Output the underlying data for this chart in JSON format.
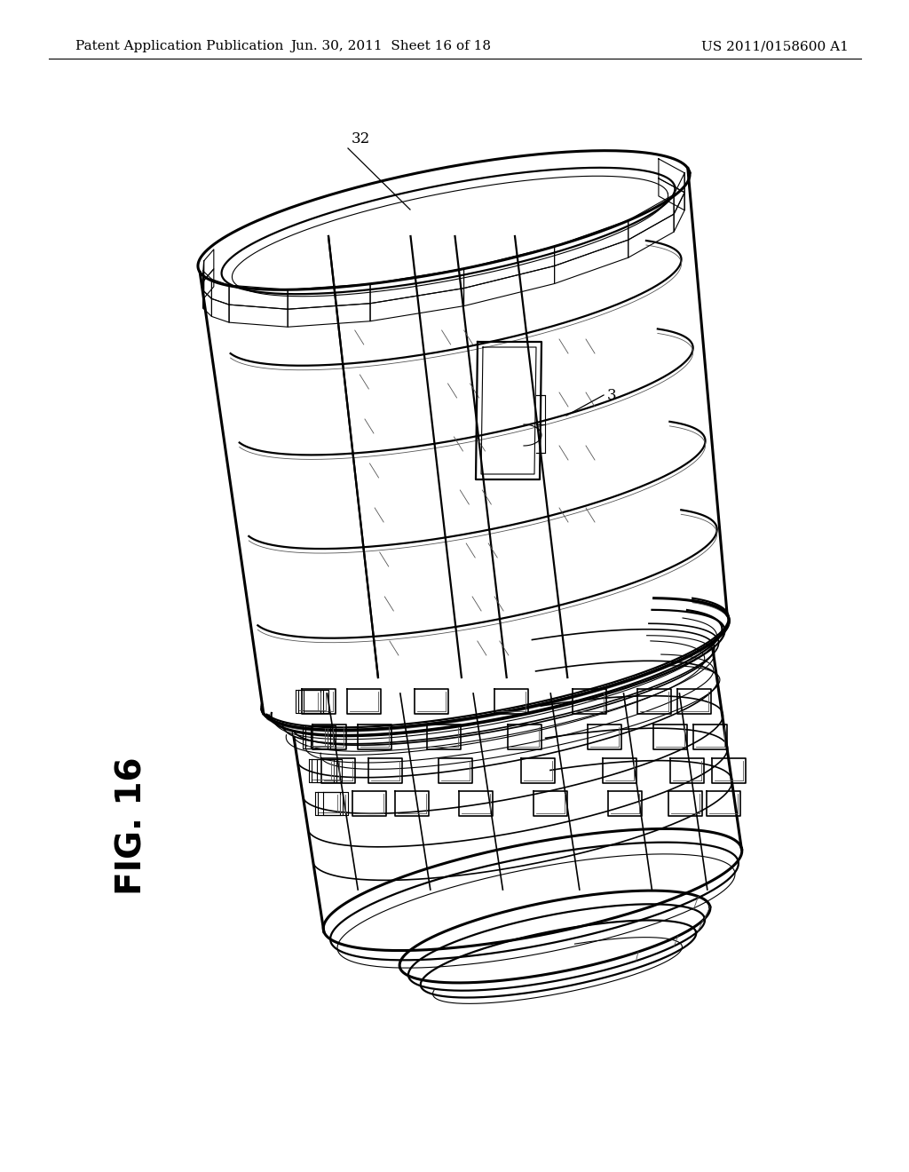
{
  "background_color": "#ffffff",
  "header_left": "Patent Application Publication",
  "header_center": "Jun. 30, 2011  Sheet 16 of 18",
  "header_right": "US 2011/0158600 A1",
  "fig_label": "FIG. 16",
  "ref_32": "32",
  "ref_3": "3",
  "header_fontsize": 11,
  "fig_label_fontsize": 28,
  "ref_fontsize": 12,
  "line_color": "#000000",
  "light_line_color": "#555555"
}
